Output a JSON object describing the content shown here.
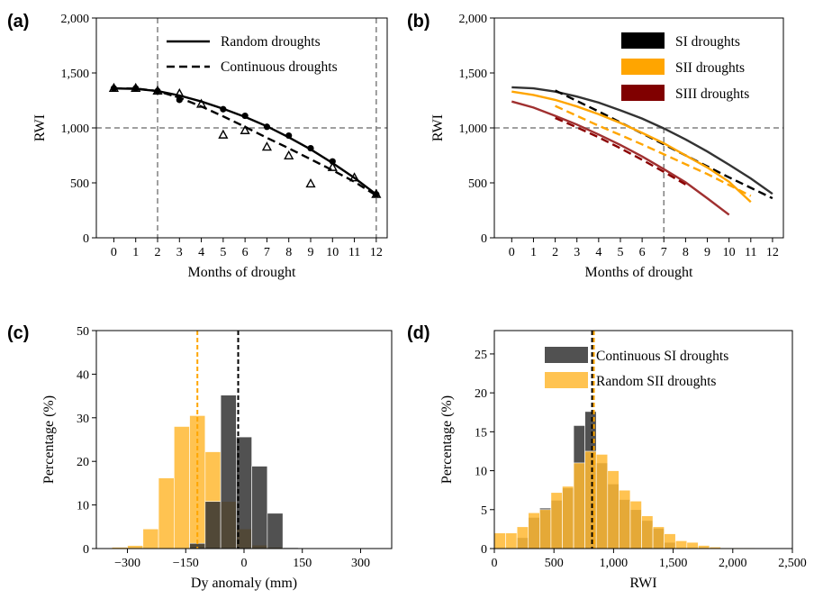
{
  "chart_data": [
    {
      "id": "a",
      "panel_label": "(a)",
      "type": "line",
      "xlabel": "Months of drought",
      "ylabel": "RWI",
      "xlim": [
        -0.8,
        12.5
      ],
      "ylim": [
        0,
        2000
      ],
      "xticks": [
        0,
        1,
        2,
        3,
        4,
        5,
        6,
        7,
        8,
        9,
        10,
        11,
        12
      ],
      "yticks": [
        0,
        500,
        1000,
        1500,
        2000
      ],
      "ytick_labels": [
        "0",
        "500",
        "1,000",
        "1,500",
        "2,000"
      ],
      "reference_lines": {
        "vertical_x": [
          2,
          12
        ],
        "horizontal_y": [
          1000
        ],
        "color": "#808080"
      },
      "legend_position": "top-right",
      "series": [
        {
          "name": "Random droughts",
          "style": "solid",
          "color": "#000000",
          "curve_x": [
            0,
            1,
            2,
            3,
            4,
            5,
            6,
            7,
            8,
            9,
            10,
            11,
            12
          ],
          "curve_y": [
            1360,
            1355,
            1335,
            1295,
            1240,
            1175,
            1100,
            1015,
            915,
            805,
            680,
            545,
            395
          ],
          "markers": "circle",
          "points_x": [
            0,
            1,
            2,
            3,
            5,
            6,
            7,
            8,
            9,
            10,
            12
          ],
          "points_y": [
            1360,
            1360,
            1335,
            1255,
            1170,
            1110,
            1010,
            930,
            815,
            695,
            395
          ]
        },
        {
          "name": "Continuous droughts",
          "style": "dashed",
          "color": "#000000",
          "curve_x": [
            0,
            1,
            2,
            3,
            4,
            5,
            6,
            7,
            8,
            9,
            10,
            11,
            12
          ],
          "curve_y": [
            1360,
            1358,
            1335,
            1275,
            1195,
            1105,
            1010,
            910,
            815,
            715,
            615,
            510,
            385
          ],
          "markers": "triangle-open",
          "points_x": [
            0,
            1,
            2,
            3,
            4,
            5,
            6,
            7,
            8,
            9,
            10,
            11,
            12
          ],
          "points_y": [
            1360,
            1360,
            1335,
            1310,
            1215,
            935,
            975,
            825,
            745,
            490,
            640,
            545,
            395
          ]
        }
      ]
    },
    {
      "id": "b",
      "panel_label": "(b)",
      "type": "line",
      "xlabel": "Months of drought",
      "ylabel": "RWI",
      "xlim": [
        -0.8,
        12.5
      ],
      "ylim": [
        0,
        2000
      ],
      "xticks": [
        0,
        1,
        2,
        3,
        4,
        5,
        6,
        7,
        8,
        9,
        10,
        11,
        12
      ],
      "yticks": [
        0,
        500,
        1000,
        1500,
        2000
      ],
      "ytick_labels": [
        "0",
        "500",
        "1,000",
        "1,500",
        "2,000"
      ],
      "reference_lines": {
        "vertical_x": [
          7
        ],
        "horizontal_y": [
          1000
        ],
        "color": "#808080",
        "vertical_to_y": 1000
      },
      "legend_position": "top-right",
      "legend": [
        {
          "name": "SI droughts",
          "color": "#000000"
        },
        {
          "name": "SII droughts",
          "color": "#ffa500"
        },
        {
          "name": "SIII droughts",
          "color": "#800000"
        }
      ],
      "series": [
        {
          "group": "SI droughts",
          "style": "solid",
          "color": "#333333",
          "x": [
            0,
            1,
            2,
            3,
            4,
            5,
            6,
            7,
            8,
            9,
            10,
            11,
            12
          ],
          "y": [
            1370,
            1360,
            1330,
            1285,
            1230,
            1160,
            1085,
            995,
            895,
            785,
            665,
            540,
            400
          ]
        },
        {
          "group": "SI droughts",
          "style": "dashed",
          "color": "#000000",
          "x": [
            2,
            3,
            4,
            5,
            6,
            7,
            8,
            9,
            10,
            11,
            12
          ],
          "y": [
            1340,
            1245,
            1150,
            1050,
            950,
            850,
            750,
            650,
            550,
            455,
            360
          ]
        },
        {
          "group": "SII droughts",
          "style": "solid",
          "color": "#ffa500",
          "x": [
            0,
            1,
            2,
            3,
            4,
            5,
            6,
            7,
            8,
            9,
            10,
            11
          ],
          "y": [
            1330,
            1300,
            1255,
            1195,
            1125,
            1045,
            955,
            860,
            750,
            640,
            510,
            325
          ]
        },
        {
          "group": "SII droughts",
          "style": "dashed",
          "color": "#ffa500",
          "x": [
            2,
            3,
            4,
            5,
            6,
            7,
            8,
            9,
            10,
            11
          ],
          "y": [
            1200,
            1110,
            1020,
            935,
            850,
            760,
            670,
            580,
            480,
            380
          ]
        },
        {
          "group": "SIII droughts",
          "style": "solid",
          "color": "#a03030",
          "x": [
            0,
            1,
            2,
            3,
            4,
            5,
            6,
            7,
            8,
            9,
            10
          ],
          "y": [
            1240,
            1185,
            1110,
            1030,
            940,
            845,
            740,
            625,
            505,
            360,
            210
          ]
        },
        {
          "group": "SIII droughts",
          "style": "dashed",
          "color": "#8b0000",
          "x": [
            2,
            3,
            4,
            5,
            6,
            7,
            8
          ],
          "y": [
            1090,
            1005,
            915,
            815,
            710,
            600,
            485
          ]
        }
      ]
    },
    {
      "id": "c",
      "panel_label": "(c)",
      "type": "bar",
      "subtype": "histogram",
      "xlabel": "Dy anomaly (mm)",
      "ylabel": "Percentage (%)",
      "xlim": [
        -380,
        380
      ],
      "ylim": [
        0,
        50
      ],
      "xticks": [
        -300,
        -150,
        0,
        150,
        300
      ],
      "xtick_labels": [
        "−300",
        "−150",
        "0",
        "150",
        "300"
      ],
      "yticks": [
        0,
        10,
        20,
        30,
        40,
        50
      ],
      "bin_width": 40,
      "reference_lines": [
        {
          "x": -120,
          "color": "#ffa500",
          "style": "dashed"
        },
        {
          "x": -15,
          "color": "#000000",
          "style": "dashed"
        }
      ],
      "series": [
        {
          "color": "#ffb833",
          "opacity": 0.85,
          "bins_left": [
            -340,
            -300,
            -260,
            -220,
            -180,
            -140,
            -100,
            -60,
            -20,
            20,
            60
          ],
          "values": [
            0.3,
            0.7,
            4.5,
            16.2,
            28.0,
            30.5,
            22.2,
            10.8,
            4.5,
            0.8,
            0.3
          ]
        },
        {
          "color": "#333333",
          "opacity": 0.85,
          "bins_left": [
            -140,
            -100,
            -60,
            -20,
            20,
            60,
            100
          ],
          "values": [
            1.2,
            10.8,
            35.2,
            25.6,
            18.9,
            8.1,
            0.2
          ]
        }
      ]
    },
    {
      "id": "d",
      "panel_label": "(d)",
      "type": "bar",
      "subtype": "histogram",
      "xlabel": "RWI",
      "ylabel": "Percentage (%)",
      "xlim": [
        0,
        2500
      ],
      "ylim": [
        0,
        28
      ],
      "xticks": [
        0,
        500,
        1000,
        1500,
        2000,
        2500
      ],
      "xtick_labels": [
        "0",
        "500",
        "1,000",
        "1,500",
        "2,000",
        "2,500"
      ],
      "yticks": [
        0,
        5,
        10,
        15,
        20,
        25
      ],
      "bin_width": 95,
      "legend_position": "top-right",
      "reference_lines": [
        {
          "x": 820,
          "color": "#000000",
          "style": "dashed"
        },
        {
          "x": 835,
          "color": "#ffa500",
          "style": "dashed"
        }
      ],
      "series": [
        {
          "name": "Continuous SI droughts",
          "color": "#333333",
          "opacity": 0.85,
          "bins_left": [
            190,
            285,
            380,
            475,
            570,
            665,
            760,
            855,
            950,
            1045,
            1140,
            1235,
            1330,
            1425
          ],
          "values": [
            1.4,
            4.0,
            5.2,
            6.2,
            7.8,
            15.8,
            17.6,
            11.0,
            8.3,
            6.3,
            5.0,
            3.6,
            2.6,
            0.8
          ]
        },
        {
          "name": "Random SII droughts",
          "color": "#ffb833",
          "opacity": 0.85,
          "bins_left": [
            0,
            95,
            190,
            285,
            380,
            475,
            570,
            665,
            760,
            855,
            950,
            1045,
            1140,
            1235,
            1330,
            1425,
            1520,
            1615,
            1710,
            1805,
            1900,
            1995,
            2090
          ],
          "values": [
            2.0,
            2.0,
            2.8,
            4.6,
            5.0,
            7.2,
            8.0,
            11.0,
            12.5,
            12.1,
            10.0,
            7.5,
            6.1,
            4.2,
            2.8,
            1.9,
            1.0,
            0.8,
            0.4,
            0.2,
            0.1,
            0.1,
            0.1
          ]
        }
      ]
    }
  ]
}
